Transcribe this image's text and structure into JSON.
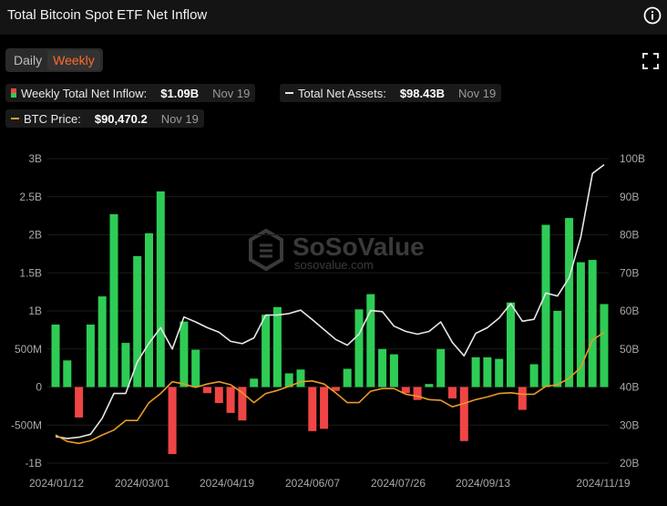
{
  "header": {
    "title": "Total Bitcoin Spot ETF Net Inflow"
  },
  "tabs": [
    {
      "label": "Daily",
      "active": false
    },
    {
      "label": "Weekly",
      "active": true
    }
  ],
  "legend": {
    "inflow": {
      "label": "Weekly Total Net Inflow:",
      "value": "$1.09B",
      "date": "Nov 19"
    },
    "assets": {
      "label": "Total Net Assets:",
      "value": "$98.43B",
      "date": "Nov 19"
    },
    "btc": {
      "label": "BTC Price:",
      "value": "$90,470.2",
      "date": "Nov 19"
    }
  },
  "watermark": {
    "name": "SoSoValue",
    "url": "sosovalue.com"
  },
  "colors": {
    "inflow_positive": "#2ecc55",
    "inflow_negative": "#f04545",
    "net_assets_line": "#e6e6e6",
    "btc_price_line": "#e89a26",
    "accent": "#ff6a2c"
  },
  "chart_data": {
    "type": "bar",
    "title": "Total Bitcoin Spot ETF Net Inflow",
    "x_tick_labels": [
      "2024/01/12",
      "2024/03/01",
      "2024/04/19",
      "2024/06/07",
      "2024/07/26",
      "2024/09/13",
      "2024/11/19"
    ],
    "y_left": {
      "ticks": [
        3,
        2.5,
        2,
        1.5,
        1,
        0.5,
        0,
        -0.5,
        -1
      ],
      "tick_labels": [
        "3B",
        "2.5B",
        "2B",
        "1.5B",
        "1B",
        "500M",
        "0",
        "-500M",
        "-1B"
      ],
      "ylim": [
        -1,
        3
      ],
      "unit": "USD billions"
    },
    "y_right": {
      "ticks": [
        100,
        90,
        80,
        70,
        60,
        50,
        40,
        30,
        20
      ],
      "tick_labels": [
        "100B",
        "90B",
        "80B",
        "70B",
        "60B",
        "50B",
        "40B",
        "30B",
        "20B"
      ],
      "ylim": [
        20,
        100
      ],
      "unit": "USD billions"
    },
    "series": [
      {
        "name": "Weekly Total Net Inflow",
        "type": "bar",
        "axis": "left",
        "values": [
          0.82,
          0.35,
          -0.4,
          0.82,
          1.19,
          2.27,
          0.58,
          1.72,
          2.02,
          2.57,
          -0.88,
          0.86,
          0.49,
          -0.08,
          -0.21,
          -0.34,
          -0.44,
          0.11,
          0.95,
          1.05,
          0.18,
          0.23,
          -0.58,
          -0.55,
          -0.05,
          0.24,
          1.02,
          1.22,
          0.5,
          0.43,
          -0.08,
          -0.17,
          0.04,
          0.5,
          -0.15,
          -0.71,
          0.39,
          0.39,
          0.37,
          1.11,
          -0.3,
          0.3,
          2.13,
          1.0,
          2.22,
          1.64,
          1.67,
          1.09
        ]
      },
      {
        "name": "Total Net Assets",
        "type": "line",
        "axis": "right",
        "values": [
          27.0,
          26.5,
          26.8,
          27.6,
          31.8,
          38.3,
          38.3,
          46.6,
          51.5,
          55.6,
          50.0,
          58.4,
          57.1,
          55.6,
          54.4,
          52.0,
          51.4,
          52.9,
          58.9,
          58.9,
          59.3,
          60.2,
          57.7,
          55.1,
          52.5,
          51.0,
          53.9,
          60.1,
          59.8,
          56.0,
          54.6,
          53.9,
          54.6,
          57.1,
          51.7,
          48.2,
          54.1,
          55.6,
          58.1,
          61.9,
          57.3,
          57.8,
          64.7,
          63.9,
          68.7,
          79.4,
          96.1,
          98.43
        ]
      },
      {
        "name": "BTC Price",
        "type": "line",
        "axis": "right",
        "values": [
          27.4,
          25.7,
          25.2,
          25.9,
          27.4,
          28.7,
          31.2,
          31.2,
          35.9,
          38.3,
          41.4,
          40.8,
          39.9,
          40.8,
          41.4,
          40.6,
          38.5,
          35.9,
          38.3,
          39.1,
          40.2,
          41.4,
          41.6,
          40.8,
          38.5,
          35.9,
          35.9,
          38.9,
          39.6,
          39.6,
          38.1,
          37.6,
          36.7,
          36.5,
          34.8,
          35.7,
          36.7,
          37.4,
          38.3,
          38.5,
          38.1,
          38.1,
          40.2,
          40.6,
          42.3,
          45.2,
          52.3,
          54.4
        ]
      }
    ]
  }
}
